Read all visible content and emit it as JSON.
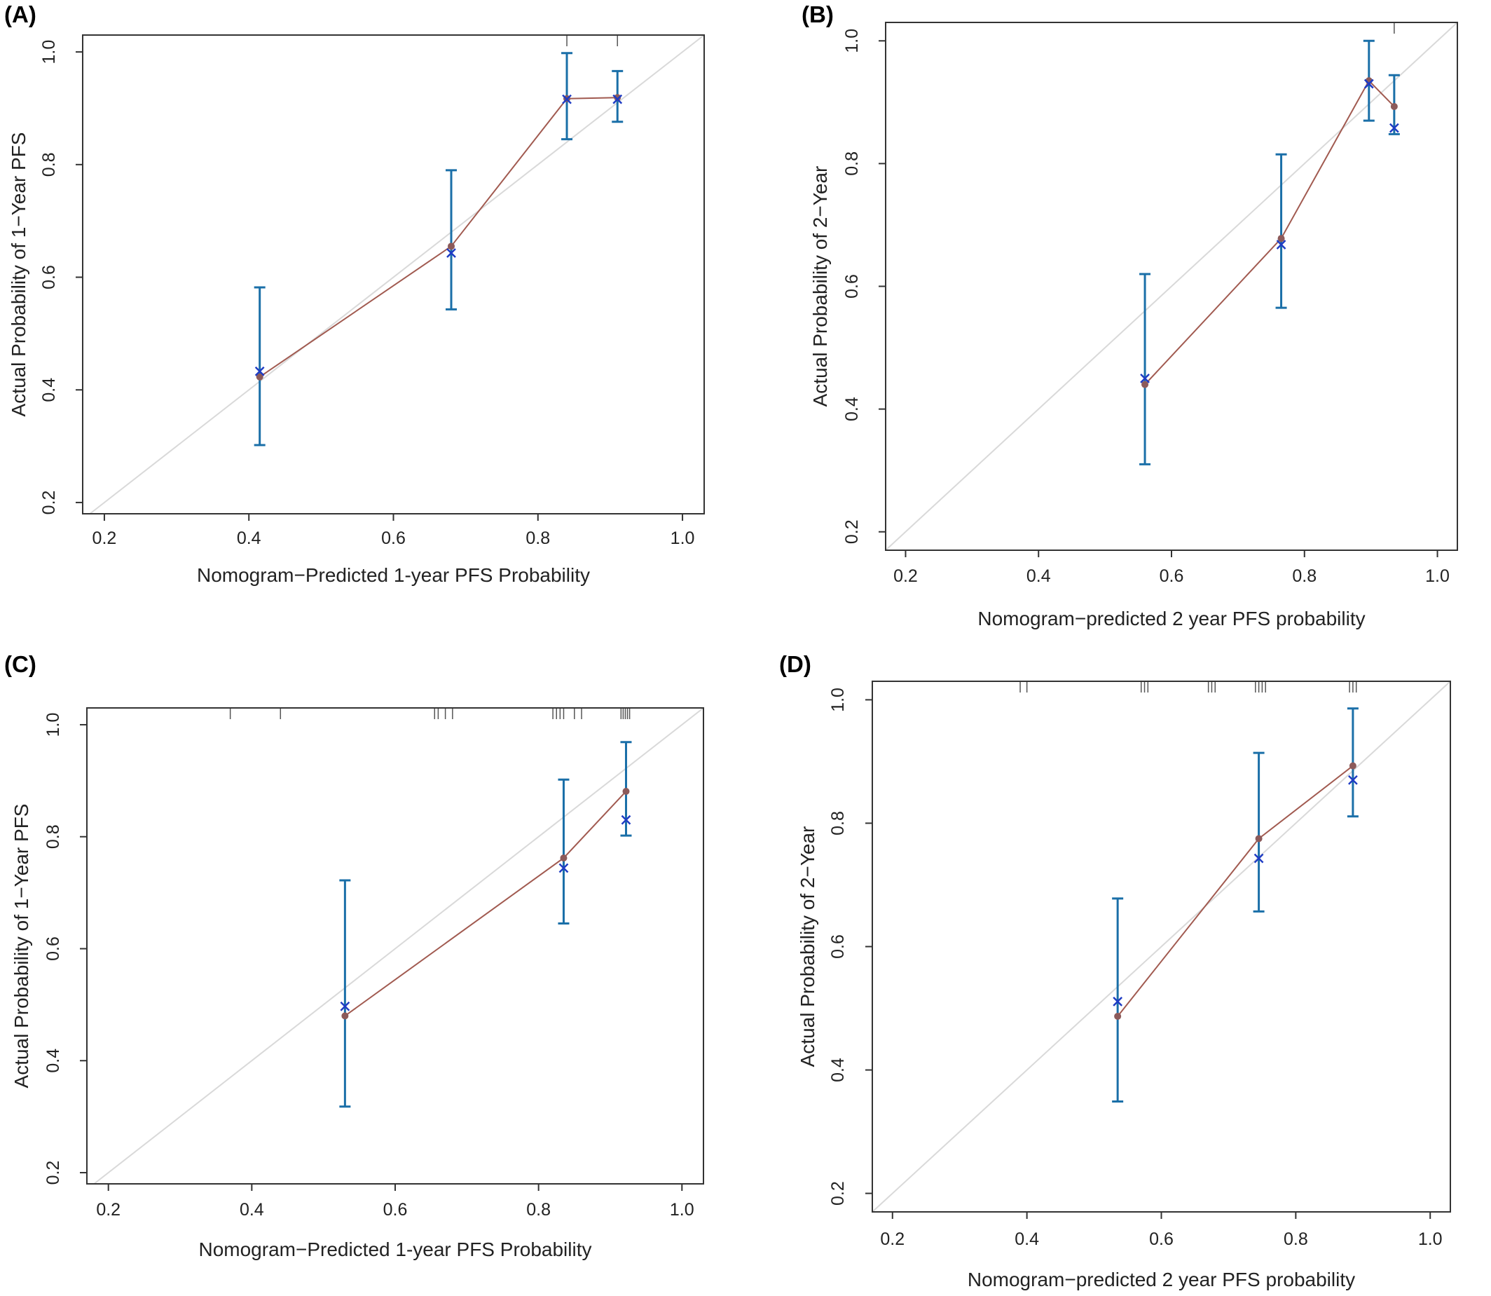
{
  "colors": {
    "frame": "#333333",
    "diagonal": "#d9d9d9",
    "line": "#a15a50",
    "dot": "#8c5a5a",
    "errorbar": "#1a6fa8",
    "cross": "#1f3cc4",
    "rug": "#555555"
  },
  "chart_data": [
    {
      "panel": "(A)",
      "type": "scatter",
      "xlabel": "Nomogram−Predicted 1-year PFS Probability",
      "ylabel": "Actual Probability of 1−Year PFS",
      "xlim": [
        0.17,
        1.03
      ],
      "ylim": [
        0.18,
        1.03
      ],
      "xticks": [
        "0.2",
        "0.4",
        "0.6",
        "0.8",
        "1.0"
      ],
      "yticks": [
        "0.2",
        "0.4",
        "0.6",
        "0.8",
        "1.0"
      ],
      "x": [
        0.415,
        0.68,
        0.84,
        0.91
      ],
      "observed": [
        0.423,
        0.655,
        0.917,
        0.919
      ],
      "corrected": [
        0.433,
        0.643,
        0.916,
        0.916
      ],
      "ci_lower": [
        0.302,
        0.543,
        0.845,
        0.876
      ],
      "ci_upper": [
        0.582,
        0.79,
        0.998,
        0.966
      ],
      "rug": [
        0.84,
        0.91
      ],
      "grid": false
    },
    {
      "panel": "(B)",
      "type": "scatter",
      "xlabel": "Nomogram−predicted 2 year PFS probability",
      "ylabel": "Actual Probability of 2−Year",
      "xlim": [
        0.17,
        1.03
      ],
      "ylim": [
        0.17,
        1.03
      ],
      "xticks": [
        "0.2",
        "0.4",
        "0.6",
        "0.8",
        "1.0"
      ],
      "yticks": [
        "0.2",
        "0.4",
        "0.6",
        "0.8",
        "1.0"
      ],
      "x": [
        0.56,
        0.765,
        0.897,
        0.935
      ],
      "observed": [
        0.44,
        0.678,
        0.935,
        0.893
      ],
      "corrected": [
        0.45,
        0.668,
        0.93,
        0.858
      ],
      "ci_lower": [
        0.31,
        0.565,
        0.87,
        0.848
      ],
      "ci_upper": [
        0.62,
        0.815,
        1.0,
        0.944
      ],
      "rug": [
        0.935
      ],
      "grid": false
    },
    {
      "panel": "(C)",
      "type": "scatter",
      "xlabel": "Nomogram−Predicted 1-year PFS Probability",
      "ylabel": "Actual Probability of 1−Year PFS",
      "xlim": [
        0.17,
        1.03
      ],
      "ylim": [
        0.18,
        1.03
      ],
      "xticks": [
        "0.2",
        "0.4",
        "0.6",
        "0.8",
        "1.0"
      ],
      "yticks": [
        "0.2",
        "0.4",
        "0.6",
        "0.8",
        "1.0"
      ],
      "x": [
        0.53,
        0.835,
        0.922
      ],
      "observed": [
        0.48,
        0.762,
        0.881
      ],
      "corrected": [
        0.497,
        0.744,
        0.83
      ],
      "ci_lower": [
        0.318,
        0.645,
        0.802
      ],
      "ci_upper": [
        0.722,
        0.902,
        0.969
      ],
      "rug": [
        0.37,
        0.44,
        0.655,
        0.66,
        0.67,
        0.68,
        0.82,
        0.825,
        0.83,
        0.835,
        0.85,
        0.86,
        0.915,
        0.918,
        0.921,
        0.924,
        0.927
      ],
      "grid": false
    },
    {
      "panel": "(D)",
      "type": "scatter",
      "xlabel": "Nomogram−predicted 2 year PFS probability",
      "ylabel": "Actual Probability of 2−Year",
      "xlim": [
        0.17,
        1.03
      ],
      "ylim": [
        0.17,
        1.03
      ],
      "xticks": [
        "0.2",
        "0.4",
        "0.6",
        "0.8",
        "1.0"
      ],
      "yticks": [
        "0.2",
        "0.4",
        "0.6",
        "0.8",
        "1.0"
      ],
      "x": [
        0.535,
        0.745,
        0.885
      ],
      "observed": [
        0.487,
        0.775,
        0.893
      ],
      "corrected": [
        0.511,
        0.743,
        0.87
      ],
      "ci_lower": [
        0.349,
        0.657,
        0.811
      ],
      "ci_upper": [
        0.678,
        0.914,
        0.986
      ],
      "rug": [
        0.39,
        0.4,
        0.57,
        0.575,
        0.58,
        0.67,
        0.675,
        0.68,
        0.74,
        0.745,
        0.75,
        0.755,
        0.88,
        0.885,
        0.89
      ],
      "grid": false
    }
  ]
}
